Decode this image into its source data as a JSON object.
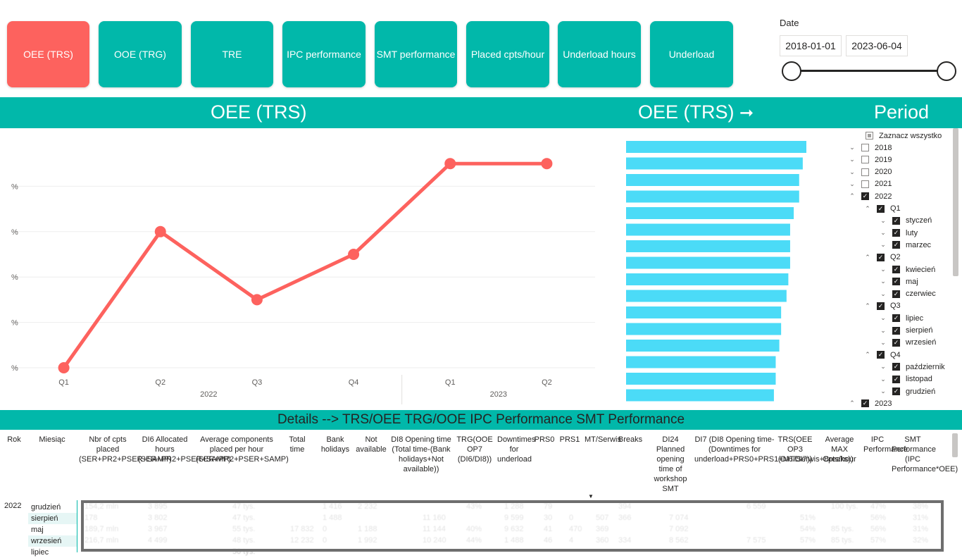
{
  "nav_buttons": [
    {
      "label": "OEE (TRS)",
      "active": true
    },
    {
      "label": "OOE (TRG)",
      "active": false
    },
    {
      "label": "TRE",
      "active": false
    },
    {
      "label": "IPC performance",
      "active": false
    },
    {
      "label": "SMT performance",
      "active": false
    },
    {
      "label": "Placed cpts/hour",
      "active": false
    },
    {
      "label": "Underload hours",
      "active": false
    },
    {
      "label": "Underload",
      "active": false
    }
  ],
  "colors": {
    "accent": "#01b8aa",
    "active": "#fd625e",
    "line": "#fd625e",
    "bar": "#4bdbf7"
  },
  "date_filter": {
    "label": "Date",
    "start": "2018-01-01",
    "end": "2023-06-04"
  },
  "headers": {
    "line_title": "OEE (TRS)",
    "bar_title": "OEE (TRS)",
    "bar_arrow": "➞",
    "period_title": "Period"
  },
  "chart_data": [
    {
      "type": "line",
      "y_tick_labels": [
        "%",
        "%",
        "%",
        "%",
        "%"
      ],
      "categories": [
        "Q1",
        "Q2",
        "Q3",
        "Q4",
        "Q1",
        "Q2"
      ],
      "groups": [
        {
          "label": "2022",
          "span": [
            0,
            3
          ]
        },
        {
          "label": "2023",
          "span": [
            4,
            5
          ]
        }
      ],
      "series": [
        {
          "values": [
            0,
            60,
            30,
            50,
            90,
            90
          ]
        }
      ],
      "ylim": [
        0,
        100
      ],
      "grid": true
    },
    {
      "type": "bar",
      "orientation": "horizontal",
      "values": [
        100,
        98,
        96,
        96,
        93,
        91,
        91,
        91,
        90,
        89,
        86,
        86,
        85,
        83,
        83,
        82
      ],
      "xlim": [
        0,
        100
      ]
    }
  ],
  "slicer": {
    "select_all": "Zaznacz wszystko",
    "rows": [
      {
        "label": "2018",
        "level": 0,
        "chev": "⌄",
        "state": "unchecked"
      },
      {
        "label": "2019",
        "level": 0,
        "chev": "⌄",
        "state": "unchecked"
      },
      {
        "label": "2020",
        "level": 0,
        "chev": "⌄",
        "state": "unchecked"
      },
      {
        "label": "2021",
        "level": 0,
        "chev": "⌄",
        "state": "unchecked"
      },
      {
        "label": "2022",
        "level": 0,
        "chev": "⌃",
        "state": "checked"
      },
      {
        "label": "Q1",
        "level": 1,
        "chev": "⌃",
        "state": "checked"
      },
      {
        "label": "styczeń",
        "level": 2,
        "chev": "⌄",
        "state": "checked"
      },
      {
        "label": "luty",
        "level": 2,
        "chev": "⌄",
        "state": "checked"
      },
      {
        "label": "marzec",
        "level": 2,
        "chev": "⌄",
        "state": "checked"
      },
      {
        "label": "Q2",
        "level": 1,
        "chev": "⌃",
        "state": "checked"
      },
      {
        "label": "kwiecień",
        "level": 2,
        "chev": "⌄",
        "state": "checked"
      },
      {
        "label": "maj",
        "level": 2,
        "chev": "⌄",
        "state": "checked"
      },
      {
        "label": "czerwiec",
        "level": 2,
        "chev": "⌄",
        "state": "checked"
      },
      {
        "label": "Q3",
        "level": 1,
        "chev": "⌃",
        "state": "checked"
      },
      {
        "label": "lipiec",
        "level": 2,
        "chev": "⌄",
        "state": "checked"
      },
      {
        "label": "sierpień",
        "level": 2,
        "chev": "⌄",
        "state": "checked"
      },
      {
        "label": "wrzesień",
        "level": 2,
        "chev": "⌄",
        "state": "checked"
      },
      {
        "label": "Q4",
        "level": 1,
        "chev": "⌃",
        "state": "checked"
      },
      {
        "label": "październik",
        "level": 2,
        "chev": "⌄",
        "state": "checked"
      },
      {
        "label": "listopad",
        "level": 2,
        "chev": "⌄",
        "state": "checked"
      },
      {
        "label": "grudzień",
        "level": 2,
        "chev": "⌄",
        "state": "checked"
      },
      {
        "label": "2023",
        "level": 0,
        "chev": "⌃",
        "state": "checked"
      }
    ]
  },
  "details": {
    "title": "Details --> TRS/OEE   TRG/OOE   IPC Performance   SMT Performance",
    "columns": [
      "Rok",
      "Miesiąc",
      "Nbr of cpts placed (SER+PR2+PSER+SAMP)",
      "DI6 Allocated hours (SER+PR2+PSER+SAMP)",
      "Average components placed per hour (SER+PR2+PSER+SAMP)",
      "Total time",
      "Bank holidays",
      "Not available",
      "DI8 Opening time (Total time-(Bank holidays+Not available))",
      "TRG(OOE OP7 (DI6/DI8))",
      "Downtimes for underload",
      "PRS0",
      "PRS1",
      "MT/Serwis",
      "Breaks",
      "DI24 Planned opening time of workshop SMT",
      "DI7 (DI8 Opening time-(Downtimes for underload+PRS0+PRS1+MT/Serwis+Breaks))",
      "TRS(OEE OP3 (DI6/DI7))",
      "Average MAX Cpts/hour",
      "IPC Performance",
      "SMT Performance (IPC Performance*OEE)"
    ],
    "year": "2022",
    "rows": [
      {
        "month": "grudzień",
        "values": [
          "154,2 mln",
          "3 895",
          "47 tys.",
          "",
          "1 416",
          "2 232",
          "",
          "43%",
          "1 288",
          "79",
          "",
          "",
          "394",
          "",
          "6 559",
          "",
          "100 tys.",
          "47%",
          "38%"
        ]
      },
      {
        "month": "sierpień",
        "values": [
          "178",
          "3 802",
          "47 tys.",
          "",
          "1 488",
          "",
          "11 160",
          "",
          "9 599",
          "30",
          "0",
          "507",
          "366",
          "7 074",
          "",
          "51%",
          "",
          "56%",
          "31%"
        ]
      },
      {
        "month": "maj",
        "values": [
          "189,7 mln",
          "3 967",
          "55 tys.",
          "17 832",
          "0",
          "1 188",
          "11 144",
          "40%",
          "9 632",
          "41",
          "470",
          "369",
          "",
          "7 092",
          "",
          "54%",
          "85 tys.",
          "56%",
          "31%"
        ]
      },
      {
        "month": "wrzesień",
        "values": [
          "216,7 mln",
          "4 499",
          "48 tys.",
          "12 232",
          "0",
          "1 992",
          "10 240",
          "44%",
          "1 488",
          "46",
          "4",
          "360",
          "334",
          "8 562",
          "7 575",
          "57%",
          "85 tys.",
          "57%",
          "32%"
        ]
      },
      {
        "month": "lipiec",
        "values": [
          "",
          "",
          "50 tys.",
          "",
          "",
          "",
          "",
          "",
          "",
          "",
          "",
          "",
          "",
          "",
          "",
          "",
          "",
          "",
          ""
        ]
      }
    ]
  }
}
